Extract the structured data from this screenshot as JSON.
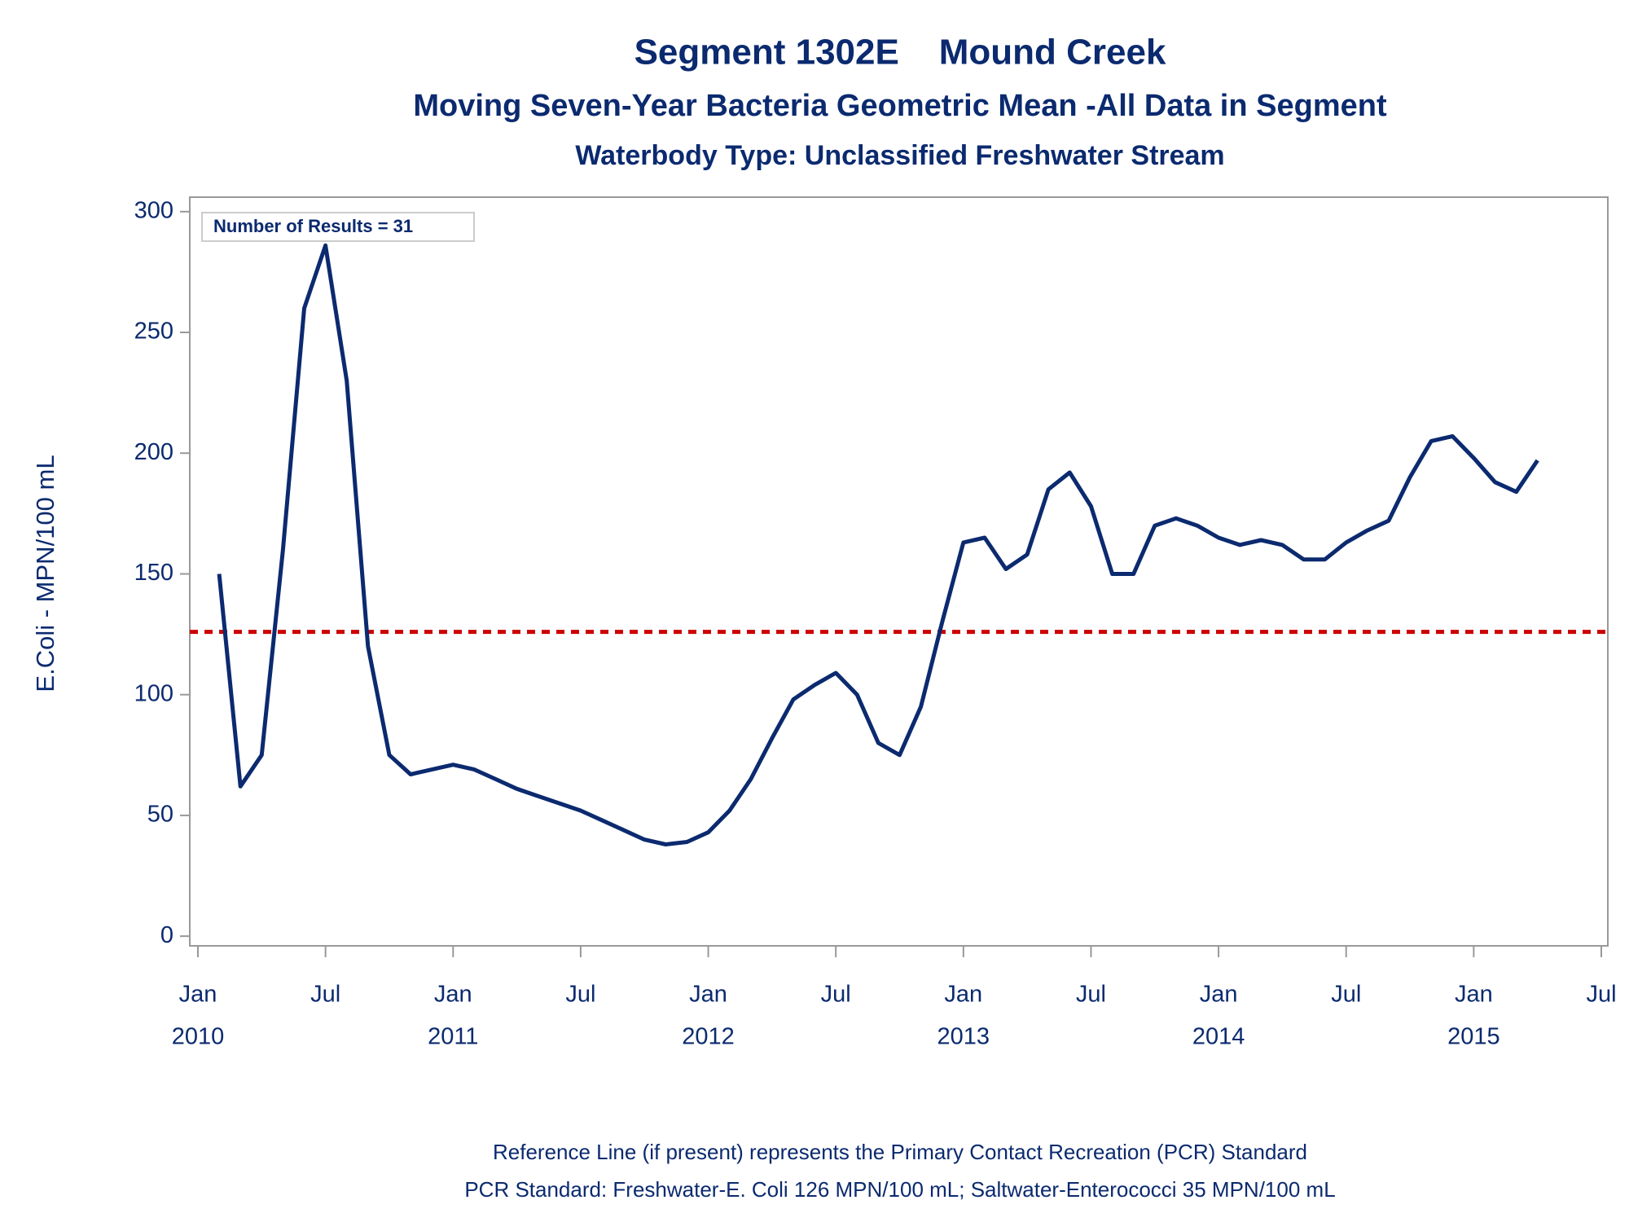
{
  "chart_data": {
    "type": "line",
    "title": "Segment 1302E    Mound Creek",
    "subtitle": "Moving Seven-Year Bacteria Geometric Mean -All Data in Segment",
    "subtitle2": "Waterbody Type: Unclassified Freshwater Stream",
    "y_label": "E.Coli - MPN/100 mL",
    "annotation": "Number of Results = 31",
    "footnotes": [
      "Reference Line (if present) represents the Primary Contact Recreation (PCR) Standard",
      "PCR Standard: Freshwater-E. Coli 126 MPN/100 mL; Saltwater-Enterococci 35 MPN/100 mL"
    ],
    "x": [
      "2010-02",
      "2010-03",
      "2010-04",
      "2010-05",
      "2010-06",
      "2010-07",
      "2010-08",
      "2010-09",
      "2010-10",
      "2010-11",
      "2010-12",
      "2011-01",
      "2011-02",
      "2011-03",
      "2011-04",
      "2011-05",
      "2011-06",
      "2011-07",
      "2011-08",
      "2011-09",
      "2011-10",
      "2011-11",
      "2011-12",
      "2012-01",
      "2012-02",
      "2012-03",
      "2012-04",
      "2012-05",
      "2012-06",
      "2012-07",
      "2012-08",
      "2012-09",
      "2012-10",
      "2012-11",
      "2012-12",
      "2013-01",
      "2013-02",
      "2013-03",
      "2013-04",
      "2013-05",
      "2013-06",
      "2013-07",
      "2013-08",
      "2013-09",
      "2013-10",
      "2013-11",
      "2013-12",
      "2014-01",
      "2014-02",
      "2014-03",
      "2014-04",
      "2014-05",
      "2014-06",
      "2014-07",
      "2014-08",
      "2014-09",
      "2014-10",
      "2014-11",
      "2014-12",
      "2015-01",
      "2015-02",
      "2015-03",
      "2015-04"
    ],
    "series": [
      {
        "name": "Geometric Mean",
        "color": "#0b2a6f",
        "values": [
          150,
          62,
          75,
          160,
          260,
          286,
          230,
          120,
          75,
          67,
          69,
          71,
          69,
          65,
          61,
          58,
          55,
          52,
          48,
          44,
          40,
          38,
          39,
          43,
          52,
          65,
          82,
          98,
          104,
          109,
          100,
          80,
          75,
          95,
          130,
          163,
          165,
          152,
          158,
          185,
          192,
          178,
          150,
          150,
          170,
          173,
          170,
          165,
          162,
          164,
          162,
          156,
          156,
          163,
          168,
          172,
          190,
          205,
          207,
          198,
          188,
          184,
          197
        ]
      }
    ],
    "reference_line": {
      "value": 126,
      "color": "#cc0000"
    },
    "xlim": [
      "2010-01",
      "2015-07"
    ],
    "xticks": [
      {
        "value": "2010-01",
        "label": "Jan",
        "year": "2010"
      },
      {
        "value": "2010-07",
        "label": "Jul"
      },
      {
        "value": "2011-01",
        "label": "Jan",
        "year": "2011"
      },
      {
        "value": "2011-07",
        "label": "Jul"
      },
      {
        "value": "2012-01",
        "label": "Jan",
        "year": "2012"
      },
      {
        "value": "2012-07",
        "label": "Jul"
      },
      {
        "value": "2013-01",
        "label": "Jan",
        "year": "2013"
      },
      {
        "value": "2013-07",
        "label": "Jul"
      },
      {
        "value": "2014-01",
        "label": "Jan",
        "year": "2014"
      },
      {
        "value": "2014-07",
        "label": "Jul"
      },
      {
        "value": "2015-01",
        "label": "Jan",
        "year": "2015"
      },
      {
        "value": "2015-07",
        "label": "Jul"
      }
    ],
    "ylim": [
      -4,
      306
    ],
    "yticks": [
      0,
      50,
      100,
      150,
      200,
      250,
      300
    ]
  }
}
